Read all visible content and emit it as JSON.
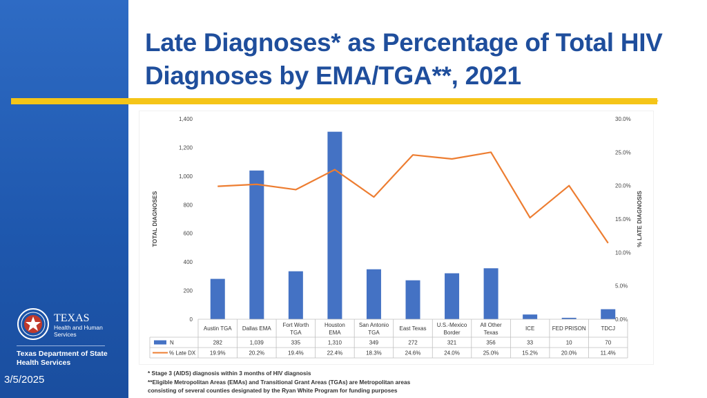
{
  "slide": {
    "title": "Late Diagnoses* as Percentage of Total HIV Diagnoses by EMA/TGA**, 2021",
    "date": "3/5/2025",
    "footnotes": [
      "* Stage 3 (AIDS) diagnosis within 3 months of HIV diagnosis",
      "**Eligible Metropolitan Areas (EMAs) and Transitional Grant Areas (TGAs) are Metropolitan areas",
      "consisting of several counties designated by the Ryan White Program for funding purposes"
    ],
    "logo": {
      "state": "TEXAS",
      "line1": "Health and Human",
      "line2": "Services",
      "agency_line1": "Texas Department of State",
      "agency_line2": "Health Services"
    }
  },
  "colors": {
    "bar": "#4472c4",
    "line": "#ed7d31",
    "title": "#1f4e9c",
    "accent": "#f5c518",
    "sidebar": "#1e57ad"
  },
  "chart_data": {
    "type": "bar",
    "title": "",
    "categories": [
      "Austin TGA",
      "Dallas EMA",
      "Fort Worth TGA",
      "Houston EMA",
      "San Antonio TGA",
      "East Texas",
      "U.S.-Mexico Border",
      "All Other Texas",
      "ICE",
      "FED PRISON",
      "TDCJ"
    ],
    "category_lines": [
      [
        "Austin TGA"
      ],
      [
        "Dallas EMA"
      ],
      [
        "Fort Worth",
        "TGA"
      ],
      [
        "Houston",
        "EMA"
      ],
      [
        "San Antonio",
        "TGA"
      ],
      [
        "East Texas"
      ],
      [
        "U.S.-Mexico",
        "Border"
      ],
      [
        "All Other",
        "Texas"
      ],
      [
        "ICE"
      ],
      [
        "FED PRISON"
      ],
      [
        "TDCJ"
      ]
    ],
    "series": [
      {
        "name": "N",
        "type": "bar",
        "axis": "left",
        "values": [
          282,
          1039,
          335,
          1310,
          349,
          272,
          321,
          356,
          33,
          10,
          70
        ],
        "labels": [
          "282",
          "1,039",
          "335",
          "1,310",
          "349",
          "272",
          "321",
          "356",
          "33",
          "10",
          "70"
        ]
      },
      {
        "name": "% Late DX",
        "type": "line",
        "axis": "right",
        "values": [
          19.9,
          20.2,
          19.4,
          22.4,
          18.3,
          24.6,
          24.0,
          25.0,
          15.2,
          20.0,
          11.4
        ],
        "labels": [
          "19.9%",
          "20.2%",
          "19.4%",
          "22.4%",
          "18.3%",
          "24.6%",
          "24.0%",
          "25.0%",
          "15.2%",
          "20.0%",
          "11.4%"
        ]
      }
    ],
    "ylabel": "TOTAL DIAGNOSES",
    "ylim": [
      0,
      1400
    ],
    "yticks": [
      0,
      200,
      400,
      600,
      800,
      1000,
      1200,
      1400
    ],
    "ytick_labels": [
      "0",
      "200",
      "400",
      "600",
      "800",
      "1,000",
      "1,200",
      "1,400"
    ],
    "y2label": "% LATE DIAGNOSIS",
    "y2lim": [
      0,
      30
    ],
    "y2ticks": [
      0,
      5,
      10,
      15,
      20,
      25,
      30
    ],
    "y2tick_labels": [
      "0.0%",
      "5.0%",
      "10.0%",
      "15.0%",
      "20.0%",
      "25.0%",
      "30.0%"
    ],
    "grid": false,
    "legend": "data-table-below"
  }
}
